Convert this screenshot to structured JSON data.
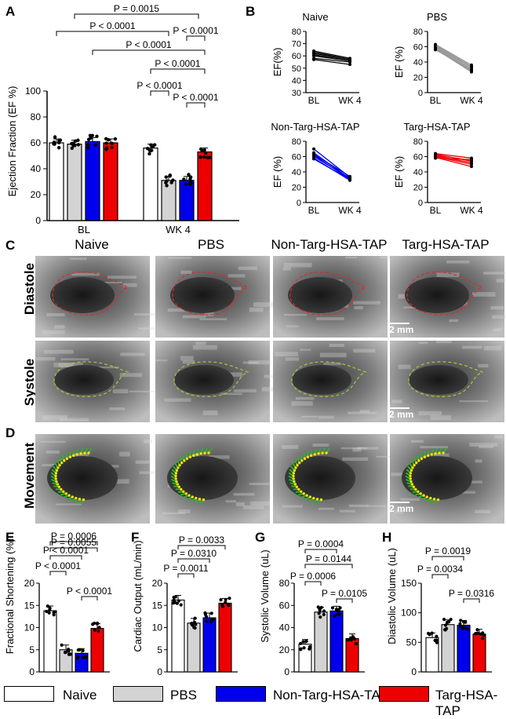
{
  "panels": {
    "A": "A",
    "B": "B",
    "C": "C",
    "D": "D",
    "E": "E",
    "F": "F",
    "G": "G",
    "H": "H"
  },
  "groups": [
    "Naive",
    "PBS",
    "Non-Targ-HSA-TAP",
    "Targ-HSA-TAP"
  ],
  "colors": {
    "Naive": "#ffffff",
    "PBS": "#d3d3d3",
    "Non-Targ-HSA-TAP": "#0000ee",
    "Targ-HSA-TAP": "#ee0000"
  },
  "panel_c": {
    "rows": [
      "Diastole",
      "Systole"
    ],
    "scale_label": "2 mm"
  },
  "panel_d": {
    "row": "Movement",
    "scale_label": "2 mm"
  },
  "chart_data": [
    {
      "id": "A",
      "type": "bar",
      "ylabel": "Ejection Fraction (EF %)",
      "categories": [
        "BL",
        "WK 4"
      ],
      "ylim": [
        0,
        100
      ],
      "yticks": [
        0,
        20,
        40,
        60,
        80,
        100
      ],
      "series": [
        {
          "name": "Naive",
          "values": [
            60,
            56
          ]
        },
        {
          "name": "PBS",
          "values": [
            59,
            31
          ]
        },
        {
          "name": "Non-Targ-HSA-TAP",
          "values": [
            61,
            31
          ]
        },
        {
          "name": "Targ-HSA-TAP",
          "values": [
            60,
            53
          ]
        }
      ],
      "annotations": [
        "P = 0.0015",
        "P < 0.0001",
        "P < 0.0001",
        "P < 0.0001",
        "P < 0.0001",
        "P < 0.0001",
        "P < 0.0001"
      ]
    },
    {
      "id": "B1",
      "type": "line",
      "title": "Naive",
      "ylabel": "EF(%)",
      "categories": [
        "BL",
        "WK 4"
      ],
      "ylim": [
        30,
        80
      ],
      "yticks": [
        30,
        40,
        50,
        60,
        70,
        80
      ],
      "series": [
        [
          64,
          58
        ],
        [
          62,
          57
        ],
        [
          61,
          56
        ],
        [
          60,
          56
        ],
        [
          58,
          55
        ],
        [
          57,
          53
        ],
        [
          63,
          57
        ]
      ]
    },
    {
      "id": "B2",
      "type": "line",
      "title": "PBS",
      "ylabel": "EF (%)",
      "categories": [
        "BL",
        "WK 4"
      ],
      "ylim": [
        0,
        80
      ],
      "yticks": [
        0,
        20,
        40,
        60,
        80
      ],
      "series": [
        [
          63,
          36
        ],
        [
          61,
          33
        ],
        [
          60,
          31
        ],
        [
          59,
          29
        ],
        [
          58,
          28
        ],
        [
          57,
          27
        ],
        [
          62,
          34
        ],
        [
          56,
          30
        ]
      ]
    },
    {
      "id": "B3",
      "type": "line",
      "title": "Non-Targ-HSA-TAP",
      "ylabel": "EF (%)",
      "categories": [
        "BL",
        "WK 4"
      ],
      "ylim": [
        0,
        80
      ],
      "yticks": [
        0,
        20,
        40,
        60,
        80
      ],
      "series": [
        [
          70,
          33
        ],
        [
          65,
          31
        ],
        [
          62,
          30
        ],
        [
          60,
          32
        ],
        [
          58,
          29
        ],
        [
          63,
          34
        ],
        [
          57,
          30
        ]
      ]
    },
    {
      "id": "B4",
      "type": "line",
      "title": "Targ-HSA-TAP",
      "ylabel": "EF (%)",
      "categories": [
        "BL",
        "WK 4"
      ],
      "ylim": [
        0,
        80
      ],
      "yticks": [
        0,
        20,
        40,
        60,
        80
      ],
      "series": [
        [
          64,
          58
        ],
        [
          62,
          55
        ],
        [
          61,
          52
        ],
        [
          60,
          50
        ],
        [
          59,
          47
        ],
        [
          58,
          56
        ],
        [
          63,
          54
        ]
      ]
    },
    {
      "id": "E",
      "type": "bar",
      "ylabel": "Fractional Shortening (%)",
      "ylim": [
        0,
        20
      ],
      "yticks": [
        0,
        5,
        10,
        15,
        20
      ],
      "values": [
        13.8,
        5,
        4.2,
        9.8
      ],
      "annotations": [
        "P = 0.0055",
        "P = 0.0006",
        "P < 0.0001",
        "P < 0.0001",
        "P < 0.0001"
      ]
    },
    {
      "id": "F",
      "type": "bar",
      "ylabel": "Cardiac Output (mL/min)",
      "ylim": [
        0,
        20
      ],
      "yticks": [
        0,
        5,
        10,
        15,
        20
      ],
      "values": [
        16.2,
        11,
        12.2,
        15.5
      ],
      "annotations": [
        "P = 0.0033",
        "P = 0.0310",
        "P = 0.0011"
      ]
    },
    {
      "id": "G",
      "type": "bar",
      "ylabel": "Systolic Volume (uL)",
      "ylim": [
        0,
        80
      ],
      "yticks": [
        0,
        20,
        40,
        60,
        80
      ],
      "values": [
        25,
        54,
        55,
        30
      ],
      "annotations": [
        "P = 0.0004",
        "P = 0.0144",
        "P = 0.0006",
        "P = 0.0105"
      ]
    },
    {
      "id": "H",
      "type": "bar",
      "ylabel": "Diastolic Volume (uL)",
      "ylim": [
        0,
        150
      ],
      "yticks": [
        0,
        50,
        100,
        150
      ],
      "values": [
        58,
        80,
        79,
        64
      ],
      "annotations": [
        "P = 0.0019",
        "P = 0.0034",
        "P = 0.0316"
      ]
    }
  ]
}
